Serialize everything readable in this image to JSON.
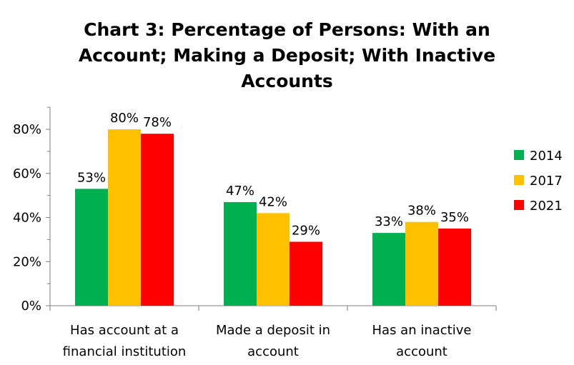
{
  "chart_data": {
    "type": "bar",
    "title_lines": [
      "Chart 3: Percentage of Persons: With an",
      "Account; Making a Deposit; With Inactive",
      "Accounts"
    ],
    "categories": [
      [
        "Has account at a",
        "financial institution"
      ],
      [
        "Made a deposit in",
        "account"
      ],
      [
        "Has an inactive",
        "account"
      ]
    ],
    "series": [
      {
        "name": "2014",
        "color": "#00b050",
        "values": [
          53,
          47,
          33
        ],
        "labels": [
          "53%",
          "47%",
          "33%"
        ]
      },
      {
        "name": "2017",
        "color": "#ffc000",
        "values": [
          80,
          42,
          38
        ],
        "labels": [
          "80%",
          "42%",
          "38%"
        ]
      },
      {
        "name": "2021",
        "color": "#ff0000",
        "values": [
          78,
          29,
          35
        ],
        "labels": [
          "78%",
          "29%",
          "35%"
        ]
      }
    ],
    "yticks": [
      {
        "value": 0,
        "label": "0%"
      },
      {
        "value": 20,
        "label": "20%"
      },
      {
        "value": 40,
        "label": "40%"
      },
      {
        "value": 60,
        "label": "60%"
      },
      {
        "value": 80,
        "label": "80%"
      }
    ],
    "ylim": [
      0,
      90
    ],
    "grid": false,
    "legend_position": "right"
  }
}
